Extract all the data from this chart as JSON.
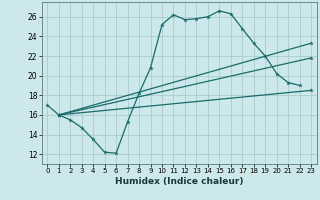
{
  "xlabel": "Humidex (Indice chaleur)",
  "ylabel": "",
  "bg_color": "#cce8ea",
  "grid_color": "#aacccc",
  "line_color": "#1a6b6b",
  "xlim": [
    -0.5,
    23.5
  ],
  "ylim": [
    11.0,
    27.5
  ],
  "xticks": [
    0,
    1,
    2,
    3,
    4,
    5,
    6,
    7,
    8,
    9,
    10,
    11,
    12,
    13,
    14,
    15,
    16,
    17,
    18,
    19,
    20,
    21,
    22,
    23
  ],
  "yticks": [
    12,
    14,
    16,
    18,
    20,
    22,
    24,
    26
  ],
  "series": [
    {
      "x": [
        0,
        1,
        2,
        3,
        4,
        5,
        6,
        7,
        8,
        9,
        10,
        11,
        12,
        13,
        14,
        15,
        16,
        17,
        18,
        19,
        20,
        21,
        22,
        23
      ],
      "y": [
        17,
        16,
        15.5,
        14.7,
        13.5,
        12.2,
        12.1,
        15.3,
        18.2,
        20.8,
        25.2,
        26.2,
        25.7,
        25.8,
        26.0,
        26.6,
        26.3,
        24.8,
        23.3,
        22.0,
        20.2,
        19.3,
        19.0,
        null
      ]
    },
    {
      "x": [
        1,
        23
      ],
      "y": [
        16,
        23.3
      ]
    },
    {
      "x": [
        1,
        23
      ],
      "y": [
        16,
        21.8
      ]
    },
    {
      "x": [
        1,
        23
      ],
      "y": [
        16,
        18.5
      ]
    }
  ]
}
